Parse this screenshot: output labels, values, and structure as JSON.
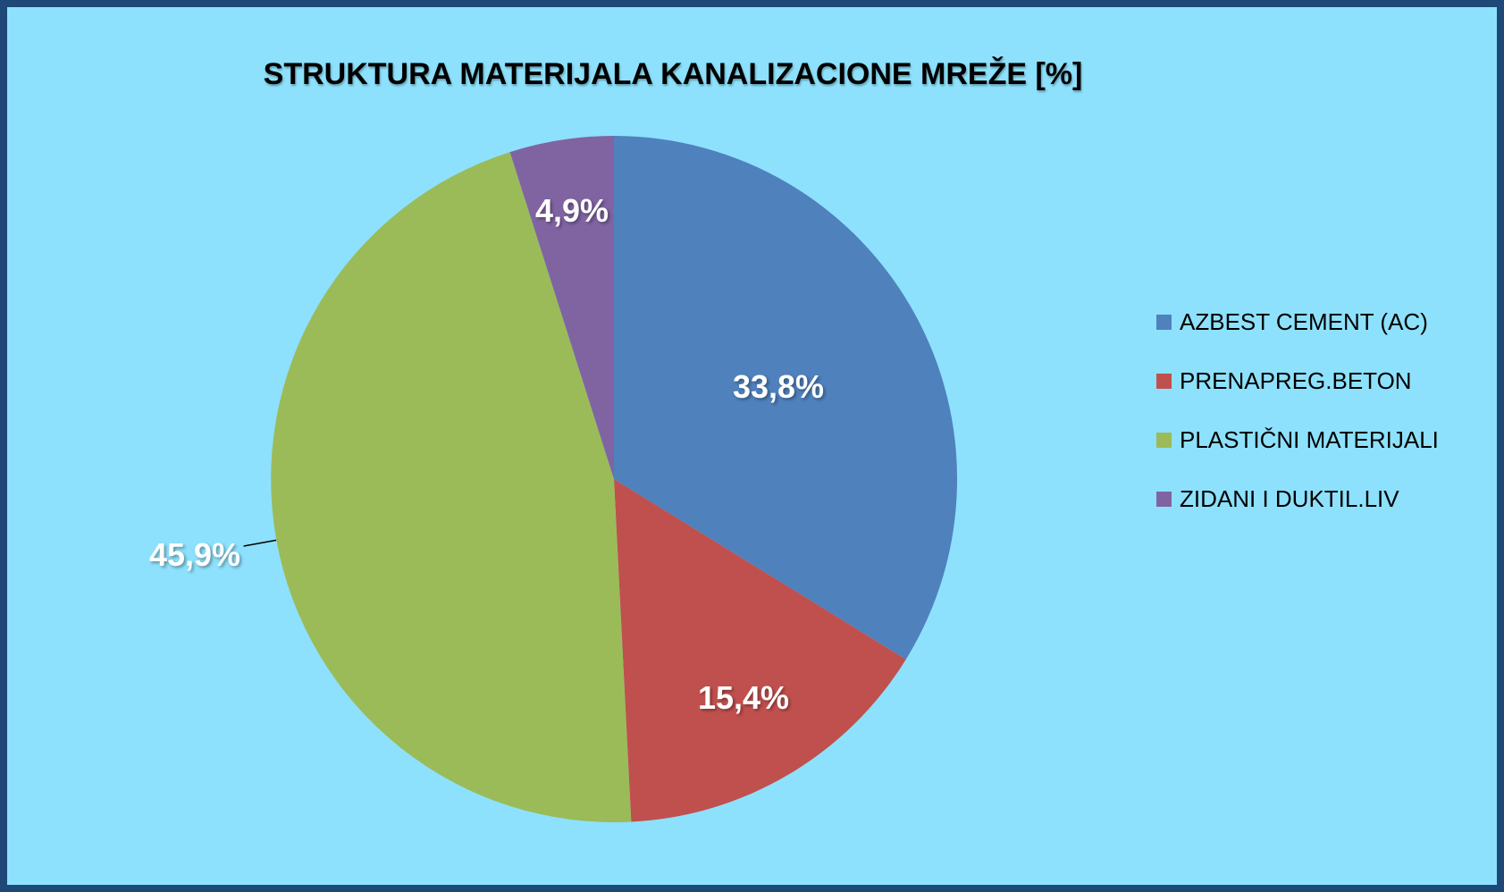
{
  "chart_data": {
    "type": "pie",
    "title": "STRUKTURA MATERIJALA KANALIZACIONE MREŽE [%]",
    "categories": [
      "AZBEST CEMENT (AC)",
      "PRENAPREG.BETON",
      "PLASTIČNI MATERIJALI",
      "ZIDANI I DUKTIL.LIV"
    ],
    "values": [
      33.8,
      15.4,
      45.9,
      4.9
    ],
    "data_labels": [
      "33,8%",
      "15,4%",
      "45,9%",
      "4,9%"
    ],
    "colors": [
      "#4F81BD",
      "#C0504D",
      "#9BBB59",
      "#8064A2"
    ],
    "start_angle_deg": 0,
    "direction": "clockwise",
    "legend_position": "right",
    "label_color": "#FFFFFF",
    "label_radius_fractions": [
      0.55,
      0.74,
      1.24,
      0.79
    ],
    "outside_label_leader_line": true,
    "leader_line_color": "#000000",
    "background_color": "#8DE1FC",
    "border_color": "#1E4878"
  }
}
